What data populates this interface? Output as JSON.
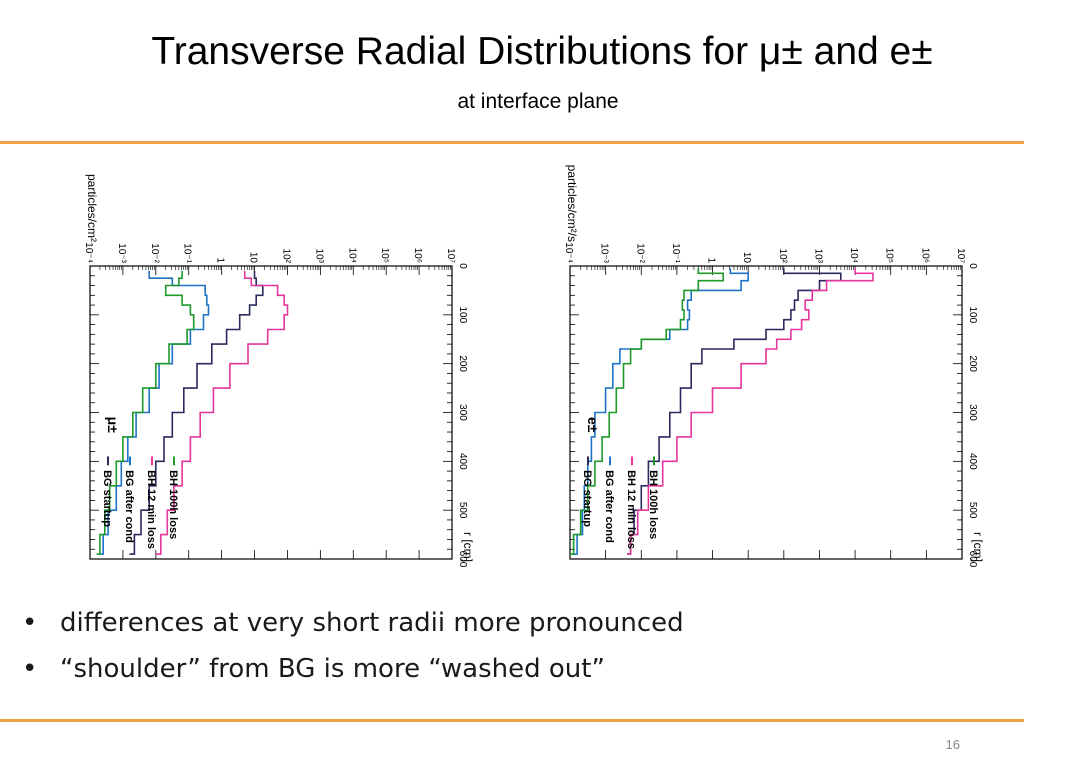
{
  "slide": {
    "title": "Transverse Radial Distributions for μ± and e±",
    "subtitle": "at interface plane",
    "bullets": [
      "differences at very short radii more pronounced",
      "“shoulder” from BG is more “washed out”"
    ],
    "page_number": "16",
    "accent_color": "#f0a04a"
  },
  "chart_data": [
    {
      "type": "line",
      "subtitle": "μ±",
      "xlabel": "r [cm]",
      "ylabel": "particles/cm²",
      "xlim": [
        0,
        600
      ],
      "ylim": [
        -4,
        7
      ],
      "ylog": true,
      "x_ticks": [
        "0",
        "100",
        "200",
        "300",
        "400",
        "500",
        "600"
      ],
      "y_tick_labels": [
        "10⁻⁴",
        "10⁻³",
        "10⁻²",
        "10⁻¹",
        "1",
        "10",
        "10²",
        "10³",
        "10⁴",
        "10⁵",
        "10⁶",
        "10⁷"
      ],
      "legend_position": "bottom-right",
      "x": [
        10,
        25,
        40,
        60,
        80,
        100,
        130,
        160,
        200,
        250,
        300,
        350,
        400,
        450,
        500,
        550,
        590
      ],
      "series": [
        {
          "name": "BG startup",
          "color": "#2a2a5e",
          "log10_values": [
            1.0,
            1.05,
            1.25,
            1.05,
            0.85,
            0.55,
            0.15,
            -0.3,
            -0.75,
            -1.15,
            -1.5,
            -1.75,
            -2.0,
            -2.2,
            -2.45,
            -2.65,
            -2.8
          ]
        },
        {
          "name": "BG after cond",
          "color": "#1e73c8",
          "log10_values": [
            -2.2,
            -1.5,
            -0.5,
            -0.45,
            -0.4,
            -0.55,
            -0.95,
            -1.5,
            -1.9,
            -2.2,
            -2.6,
            -2.85,
            -3.05,
            -3.2,
            -3.45,
            -3.6,
            -3.7
          ]
        },
        {
          "name": "BH 12 min loss",
          "color": "#e6369b",
          "log10_values": [
            0.7,
            0.9,
            1.7,
            1.9,
            2.0,
            1.9,
            1.4,
            0.8,
            0.25,
            -0.25,
            -0.65,
            -0.95,
            -1.2,
            -1.45,
            -1.65,
            -1.85,
            -2.0
          ]
        },
        {
          "name": "BH 100h loss",
          "color": "#1f9a2a",
          "log10_values": [
            -1.2,
            -1.3,
            -1.7,
            -1.2,
            -0.95,
            -0.85,
            -1.05,
            -1.6,
            -2.0,
            -2.4,
            -2.7,
            -3.0,
            -3.2,
            -3.4,
            -3.55,
            -3.7,
            -3.8
          ]
        }
      ]
    },
    {
      "type": "line",
      "subtitle": "e±",
      "xlabel": "r [cm]",
      "ylabel": "particles/cm²/s",
      "xlim": [
        0,
        600
      ],
      "ylim": [
        -4,
        7
      ],
      "ylog": true,
      "x_ticks": [
        "0",
        "100",
        "200",
        "300",
        "400",
        "500",
        "600"
      ],
      "y_tick_labels": [
        "10⁻⁴",
        "10⁻³",
        "10⁻²",
        "10⁻¹",
        "1",
        "10",
        "10²",
        "10³",
        "10⁴",
        "10⁵",
        "10⁶",
        "10⁷"
      ],
      "legend_position": "bottom-right",
      "x": [
        5,
        15,
        30,
        50,
        70,
        90,
        110,
        130,
        150,
        170,
        200,
        250,
        300,
        350,
        400,
        450,
        500,
        550,
        590
      ],
      "series": [
        {
          "name": "BG startup",
          "color": "#2a2a5e",
          "log10_values": [
            2.0,
            3.6,
            3.0,
            2.4,
            2.3,
            2.2,
            2.0,
            1.5,
            0.6,
            -0.3,
            -0.6,
            -0.9,
            -1.2,
            -1.5,
            -1.8,
            -2.0,
            -2.2,
            -2.3,
            -2.4
          ]
        },
        {
          "name": "BG after cond",
          "color": "#1e73c8",
          "log10_values": [
            0.5,
            1.0,
            0.8,
            -0.6,
            -0.7,
            -0.65,
            -0.7,
            -1.2,
            -2.0,
            -2.6,
            -2.8,
            -3.0,
            -3.3,
            -3.4,
            -3.5,
            -3.6,
            -3.65,
            -3.8,
            -3.9
          ]
        },
        {
          "name": "BH 12 min loss",
          "color": "#e6369b",
          "log10_values": [
            4.0,
            4.5,
            3.2,
            2.8,
            2.6,
            2.7,
            2.5,
            2.2,
            1.8,
            1.5,
            0.8,
            0.0,
            -0.6,
            -1.0,
            -1.4,
            -1.8,
            -2.1,
            -2.3,
            -2.4
          ]
        },
        {
          "name": "BH 100h loss",
          "color": "#1f9a2a",
          "log10_values": [
            -0.4,
            0.3,
            -0.4,
            -0.8,
            -0.85,
            -0.8,
            -0.9,
            -1.3,
            -2.0,
            -2.3,
            -2.5,
            -2.7,
            -2.9,
            -3.1,
            -3.3,
            -3.5,
            -3.7,
            -3.9,
            -4.0
          ]
        }
      ]
    }
  ]
}
